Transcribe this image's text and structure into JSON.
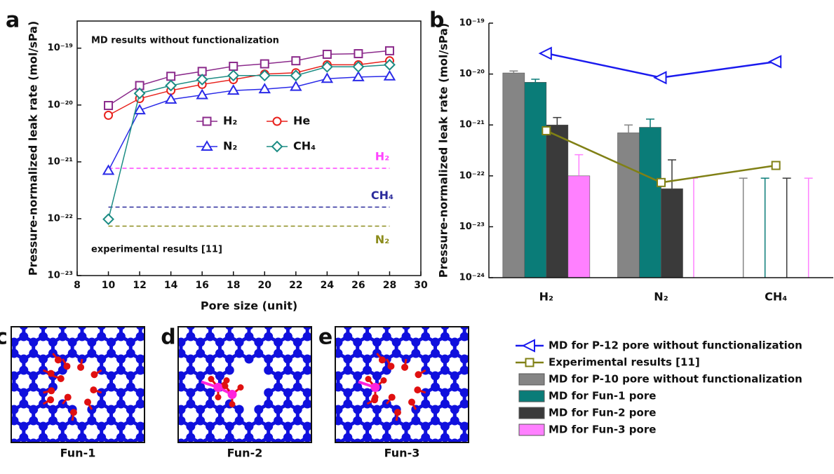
{
  "chart_data": [
    {
      "type": "line",
      "panel_label": "a",
      "annotations": [
        "MD results without functionalization",
        "experimental results [11]"
      ],
      "xlabel": "Pore size (unit)",
      "ylabel": "Pressure-normalized leak rate (mol/sPa)",
      "yscale": "log",
      "xlim": [
        8,
        30
      ],
      "xticks": [
        8,
        10,
        12,
        14,
        16,
        18,
        20,
        22,
        24,
        26,
        28,
        30
      ],
      "ylim": [
        1e-23,
        3e-19
      ],
      "yticks": [
        {
          "value": 1e-23,
          "label": "10⁻²³"
        },
        {
          "value": 1e-22,
          "label": "10⁻²²"
        },
        {
          "value": 1e-21,
          "label": "10⁻²¹"
        },
        {
          "value": 1e-20,
          "label": "10⁻²⁰"
        },
        {
          "value": 1e-19,
          "label": "10⁻¹⁹"
        }
      ],
      "x": [
        10,
        12,
        14,
        16,
        18,
        20,
        22,
        24,
        26,
        28
      ],
      "series": [
        {
          "name": "H₂",
          "color": "#8b2a8b",
          "marker": "square",
          "values": [
            9.8e-21,
            2.2e-20,
            3.2e-20,
            3.9e-20,
            4.8e-20,
            5.3e-20,
            6e-20,
            7.8e-20,
            8e-20,
            9e-20
          ]
        },
        {
          "name": "He",
          "color": "#e8211c",
          "marker": "circle",
          "values": [
            6.6e-21,
            1.3e-20,
            1.8e-20,
            2.3e-20,
            2.8e-20,
            3.5e-20,
            3.7e-20,
            5.1e-20,
            5.1e-20,
            6e-20
          ]
        },
        {
          "name": "N₂",
          "color": "#2a2ae8",
          "marker": "triangle",
          "values": [
            7e-22,
            8.1e-21,
            1.25e-20,
            1.5e-20,
            1.8e-20,
            1.9e-20,
            2.1e-20,
            2.9e-20,
            3.1e-20,
            3.2e-20
          ]
        },
        {
          "name": "CH₄",
          "color": "#1c8c84",
          "marker": "diamond",
          "values": [
            9.8e-23,
            1.6e-20,
            2.2e-20,
            2.8e-20,
            3.3e-20,
            3.3e-20,
            3.3e-20,
            4.7e-20,
            4.7e-20,
            5.1e-20
          ]
        }
      ],
      "reference_lines": [
        {
          "name": "H₂",
          "value": 7.7e-22,
          "color": "#ff44ff"
        },
        {
          "name": "CH₄",
          "value": 1.6e-22,
          "color": "#2c2c9c"
        },
        {
          "name": "N₂",
          "value": 7.4e-23,
          "color": "#8c8c1c"
        }
      ]
    },
    {
      "type": "bar",
      "panel_label": "b",
      "ylabel": "Pressure-normalized leak rate (mol/sPa)",
      "yscale": "log",
      "ylim": [
        1e-24,
        1e-19
      ],
      "yticks": [
        {
          "value": 1e-24,
          "label": "10⁻²⁴"
        },
        {
          "value": 1e-23,
          "label": "10⁻²³"
        },
        {
          "value": 1e-22,
          "label": "10⁻²²"
        },
        {
          "value": 1e-21,
          "label": "10⁻²¹"
        },
        {
          "value": 1e-20,
          "label": "10⁻²⁰"
        },
        {
          "value": 1e-19,
          "label": "10⁻¹⁹"
        }
      ],
      "categories": [
        "H₂",
        "N₂",
        "CH₄"
      ],
      "series": [
        {
          "name": "MD for P-12 pore without functionalization",
          "type": "line",
          "marker": "triangle-left",
          "color": "#1a1aee",
          "values": [
            2.55e-20,
            8.5e-21,
            1.75e-20
          ]
        },
        {
          "name": "Experimental results [11]",
          "type": "line",
          "marker": "square",
          "color": "#808015",
          "values": [
            7.7e-22,
            7.4e-23,
            1.6e-22
          ]
        },
        {
          "name": "MD for P-10 pore without functionalization",
          "type": "bar",
          "color": "#858585",
          "values": [
            1.05e-20,
            7e-22,
            null
          ],
          "errors": [
            1e-21,
            3e-22,
            9e-23
          ]
        },
        {
          "name": "MD for Fun-1 pore",
          "type": "bar",
          "color": "#0a7c78",
          "values": [
            6.9e-21,
            9e-22,
            null
          ],
          "errors": [
            1e-21,
            4e-22,
            9e-23
          ]
        },
        {
          "name": "MD for Fun-2 pore",
          "type": "bar",
          "color": "#3a3a3a",
          "values": [
            1e-21,
            5.6e-23,
            null
          ],
          "errors": [
            4e-22,
            1.5e-22,
            9e-23
          ]
        },
        {
          "name": "MD for Fun-3 pore",
          "type": "bar",
          "color": "#ff80ff",
          "values": [
            1e-22,
            null,
            null
          ],
          "errors": [
            1.6e-22,
            9e-23,
            9e-23
          ]
        }
      ]
    }
  ],
  "panels": [
    {
      "label": "c",
      "caption": "Fun-1"
    },
    {
      "label": "d",
      "caption": "Fun-2"
    },
    {
      "label": "e",
      "caption": "Fun-3"
    }
  ]
}
